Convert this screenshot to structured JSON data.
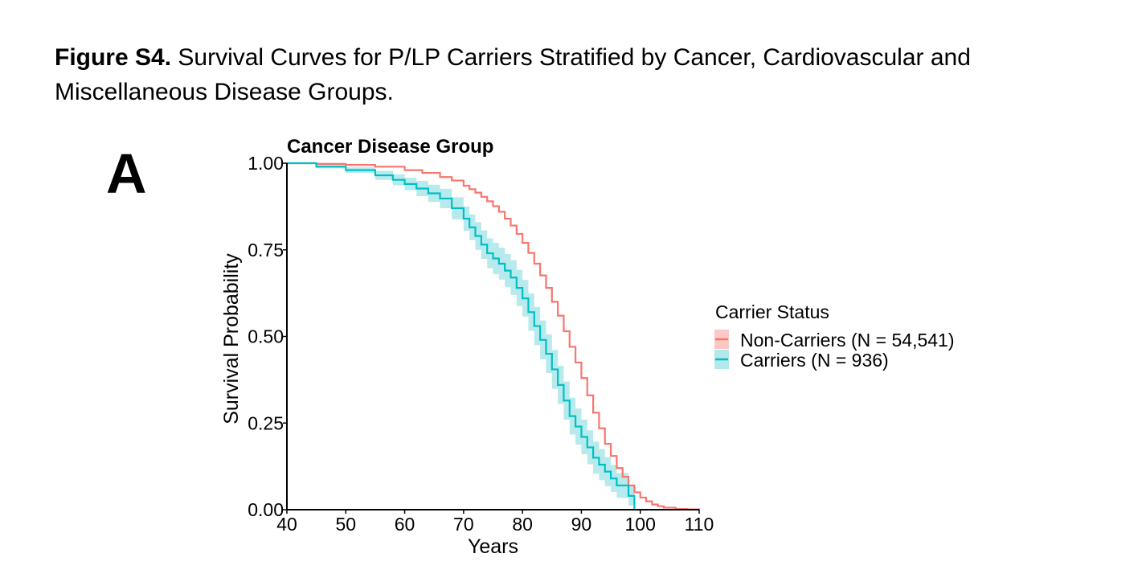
{
  "caption": {
    "bold": "Figure S4.",
    "text": " Survival Curves for P/LP Carriers Stratified by Cancer, Cardiovascular and Miscellaneous Disease Groups."
  },
  "panel_letter": "A",
  "chart_data": {
    "type": "line",
    "title": "Cancer Disease Group",
    "xlabel": "Years",
    "ylabel": "Survival Probability",
    "xlim": [
      40,
      110
    ],
    "ylim": [
      0,
      1
    ],
    "xticks": [
      40,
      50,
      60,
      70,
      80,
      90,
      100,
      110
    ],
    "xtick_labels": [
      "40",
      "50",
      "60",
      "70",
      "80",
      "90",
      "100",
      "110"
    ],
    "yticks": [
      0,
      0.25,
      0.5,
      0.75,
      1.0
    ],
    "ytick_labels": [
      "0.00",
      "0.25",
      "0.50",
      "0.75",
      "1.00"
    ],
    "grid": false,
    "step": true,
    "legend": {
      "title": "Carrier Status",
      "position": "right"
    },
    "series": [
      {
        "name": "Non-Carriers (N = 54,541)",
        "color": "#F8766D",
        "band_color": "#F8766D",
        "x": [
          40,
          45,
          50,
          55,
          60,
          63,
          66,
          68,
          70,
          71,
          72,
          73,
          74,
          75,
          76,
          77,
          78,
          79,
          80,
          81,
          82,
          83,
          84,
          85,
          86,
          87,
          88,
          89,
          90,
          91,
          92,
          93,
          94,
          95,
          96,
          97,
          98,
          99,
          100,
          101,
          102,
          103,
          104,
          106,
          108,
          110
        ],
        "y": [
          1.0,
          0.998,
          0.995,
          0.99,
          0.98,
          0.972,
          0.96,
          0.95,
          0.935,
          0.925,
          0.915,
          0.903,
          0.89,
          0.876,
          0.86,
          0.84,
          0.82,
          0.796,
          0.77,
          0.741,
          0.71,
          0.676,
          0.64,
          0.6,
          0.56,
          0.515,
          0.47,
          0.425,
          0.38,
          0.33,
          0.28,
          0.235,
          0.19,
          0.155,
          0.12,
          0.095,
          0.07,
          0.05,
          0.035,
          0.024,
          0.015,
          0.01,
          0.006,
          0.002,
          0.001,
          0.0
        ],
        "lower": [
          1.0,
          0.998,
          0.995,
          0.99,
          0.98,
          0.972,
          0.96,
          0.95,
          0.935,
          0.925,
          0.915,
          0.903,
          0.89,
          0.876,
          0.86,
          0.84,
          0.82,
          0.796,
          0.77,
          0.741,
          0.71,
          0.676,
          0.64,
          0.6,
          0.56,
          0.515,
          0.47,
          0.425,
          0.38,
          0.33,
          0.28,
          0.235,
          0.19,
          0.155,
          0.12,
          0.095,
          0.07,
          0.05,
          0.035,
          0.024,
          0.015,
          0.01,
          0.006,
          0.002,
          0.001,
          0.0
        ],
        "upper": [
          1.0,
          0.998,
          0.995,
          0.99,
          0.98,
          0.972,
          0.96,
          0.95,
          0.935,
          0.925,
          0.915,
          0.903,
          0.89,
          0.876,
          0.86,
          0.84,
          0.82,
          0.796,
          0.77,
          0.741,
          0.71,
          0.676,
          0.64,
          0.6,
          0.56,
          0.515,
          0.47,
          0.425,
          0.38,
          0.33,
          0.28,
          0.235,
          0.19,
          0.155,
          0.12,
          0.095,
          0.07,
          0.05,
          0.035,
          0.024,
          0.015,
          0.01,
          0.006,
          0.002,
          0.001,
          0.0
        ]
      },
      {
        "name": "Carriers (N = 936)",
        "color": "#00BFC4",
        "band_color": "#9FE3E6",
        "x": [
          40,
          45,
          50,
          55,
          58,
          60,
          62,
          64,
          66,
          68,
          70,
          71,
          72,
          73,
          74,
          75,
          76,
          77,
          78,
          79,
          80,
          81,
          82,
          83,
          84,
          85,
          86,
          87,
          88,
          89,
          90,
          91,
          92,
          93,
          94,
          95,
          96,
          97,
          98,
          99
        ],
        "y": [
          1.0,
          0.99,
          0.98,
          0.965,
          0.952,
          0.94,
          0.927,
          0.913,
          0.898,
          0.87,
          0.84,
          0.815,
          0.79,
          0.765,
          0.74,
          0.725,
          0.71,
          0.69,
          0.67,
          0.64,
          0.61,
          0.57,
          0.53,
          0.49,
          0.45,
          0.405,
          0.36,
          0.315,
          0.27,
          0.24,
          0.21,
          0.18,
          0.15,
          0.13,
          0.11,
          0.09,
          0.07,
          0.07,
          0.04,
          0.0
        ],
        "lower": [
          1.0,
          0.985,
          0.972,
          0.952,
          0.936,
          0.922,
          0.905,
          0.888,
          0.87,
          0.838,
          0.805,
          0.778,
          0.75,
          0.724,
          0.697,
          0.68,
          0.664,
          0.642,
          0.62,
          0.588,
          0.557,
          0.516,
          0.475,
          0.434,
          0.394,
          0.349,
          0.305,
          0.26,
          0.217,
          0.188,
          0.16,
          0.131,
          0.104,
          0.085,
          0.068,
          0.051,
          0.034,
          0.034,
          0.012,
          0.0
        ],
        "upper": [
          1.0,
          0.995,
          0.988,
          0.978,
          0.968,
          0.958,
          0.949,
          0.938,
          0.926,
          0.902,
          0.875,
          0.852,
          0.83,
          0.806,
          0.783,
          0.77,
          0.756,
          0.738,
          0.72,
          0.692,
          0.663,
          0.624,
          0.585,
          0.546,
          0.506,
          0.461,
          0.415,
          0.37,
          0.323,
          0.292,
          0.26,
          0.229,
          0.196,
          0.175,
          0.152,
          0.129,
          0.106,
          0.106,
          0.068,
          0.0
        ]
      }
    ]
  }
}
